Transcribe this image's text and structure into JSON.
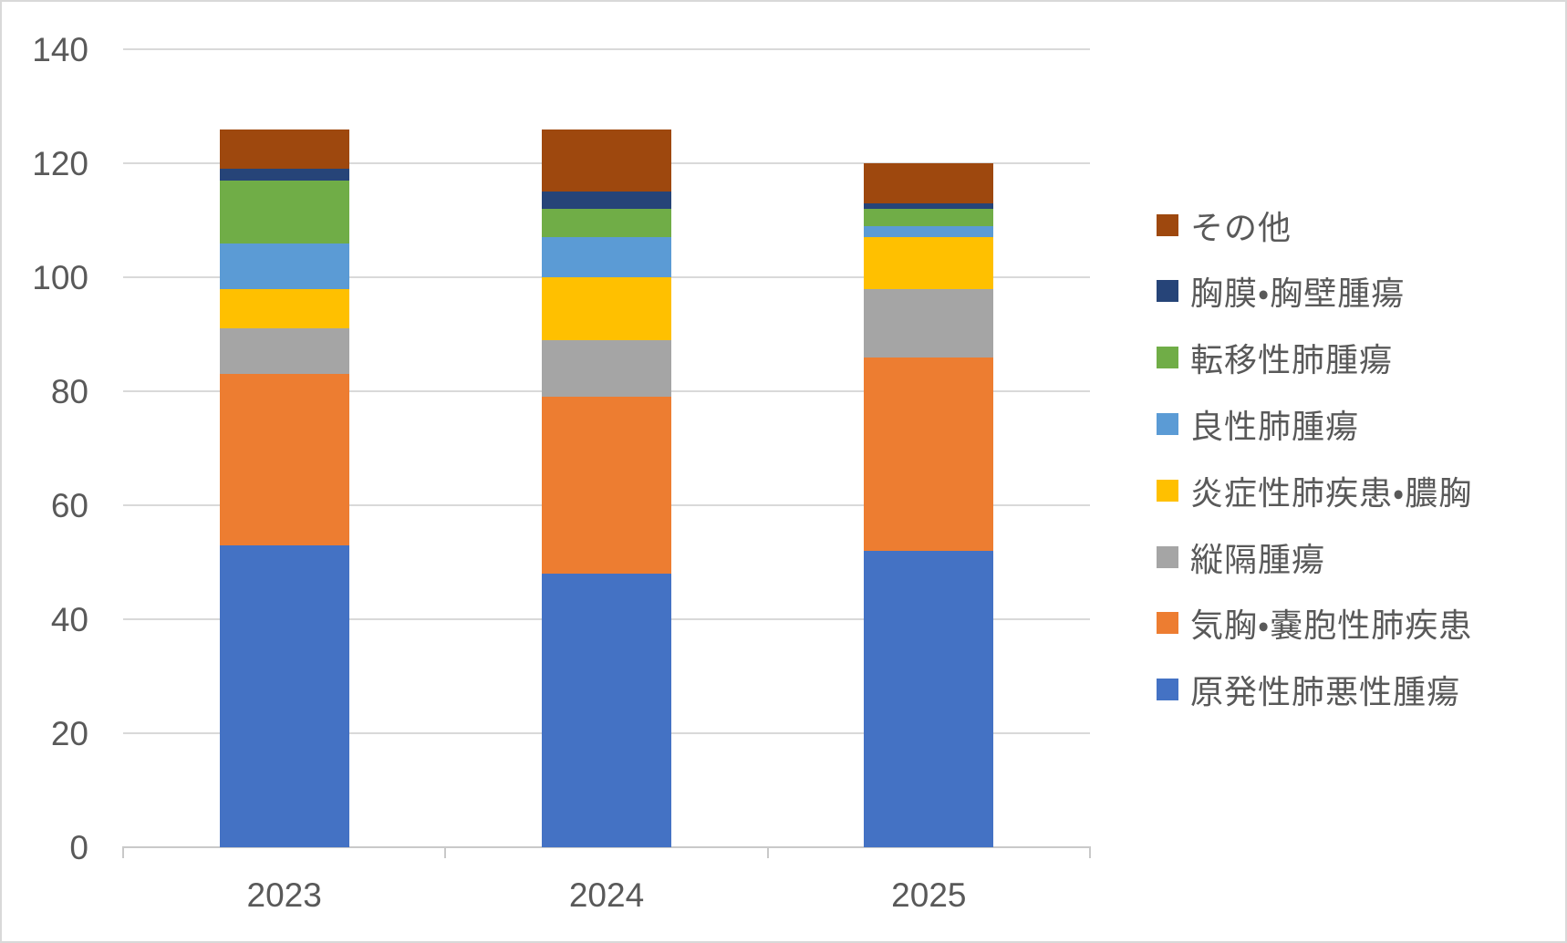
{
  "chart_data": {
    "type": "bar",
    "stacked": true,
    "title": "",
    "xlabel": "",
    "ylabel": "",
    "categories": [
      "2023",
      "2024",
      "2025"
    ],
    "series": [
      {
        "name": "原発性肺悪性腫瘍",
        "color": "#4472C4",
        "values": [
          53,
          48,
          52
        ]
      },
      {
        "name": "気胸・嚢胞性肺疾患",
        "color": "#ED7D31",
        "values": [
          30,
          31,
          34
        ]
      },
      {
        "name": "縦隔腫瘍",
        "color": "#A5A5A5",
        "values": [
          8,
          10,
          12
        ]
      },
      {
        "name": "炎症性肺疾患・膿胸",
        "color": "#FFC000",
        "values": [
          7,
          11,
          9
        ]
      },
      {
        "name": "良性肺腫瘍",
        "color": "#5B9BD5",
        "values": [
          8,
          7,
          2
        ]
      },
      {
        "name": "転移性肺腫瘍",
        "color": "#70AD47",
        "values": [
          11,
          5,
          3
        ]
      },
      {
        "name": "胸膜・胸壁腫瘍",
        "color": "#264478",
        "values": [
          2,
          3,
          1
        ]
      },
      {
        "name": "その他",
        "color": "#9E480E",
        "values": [
          7,
          11,
          7
        ]
      }
    ],
    "stack_totals": [
      126,
      126,
      120
    ],
    "y_axis": {
      "min": 0,
      "max": 140,
      "step": 20,
      "tick_labels": [
        "0",
        "20",
        "40",
        "60",
        "80",
        "100",
        "120",
        "140"
      ]
    },
    "grid": true,
    "legend": {
      "position": "right",
      "order_top_to_bottom": [
        "その他",
        "胸膜・胸壁腫瘍",
        "転移性肺腫瘍",
        "良性肺腫瘍",
        "炎症性肺疾患・膿胸",
        "縦隔腫瘍",
        "気胸・嚢胞性肺疾患",
        "原発性肺悪性腫瘍"
      ]
    },
    "colors": {
      "gridline": "#D9D9D9",
      "axis_line": "#C9C9C9",
      "text": "#595959",
      "background": "#FFFFFF",
      "border": "#D9D9D9"
    }
  }
}
